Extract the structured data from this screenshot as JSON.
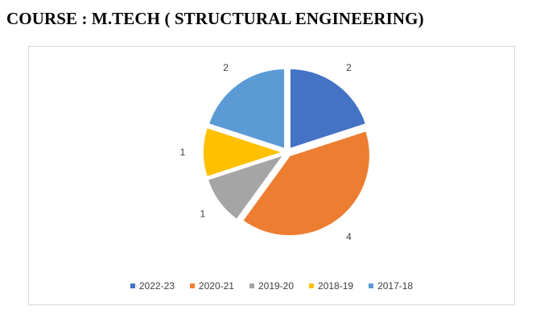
{
  "page": {
    "heading": "COURSE : M.TECH ( STRUCTURAL ENGINEERING)"
  },
  "chart_data": {
    "type": "pie",
    "title": "",
    "categories": [
      "2022-23",
      "2020-21",
      "2019-20",
      "2018-19",
      "2017-18"
    ],
    "values": [
      2,
      4,
      1,
      1,
      2
    ],
    "colors": [
      "#4472c4",
      "#ed7d31",
      "#a5a5a5",
      "#ffc000",
      "#5b9bd5"
    ],
    "data_labels": [
      "2",
      "4",
      "1",
      "1",
      "2"
    ],
    "exploded": true,
    "legend_position": "bottom"
  }
}
